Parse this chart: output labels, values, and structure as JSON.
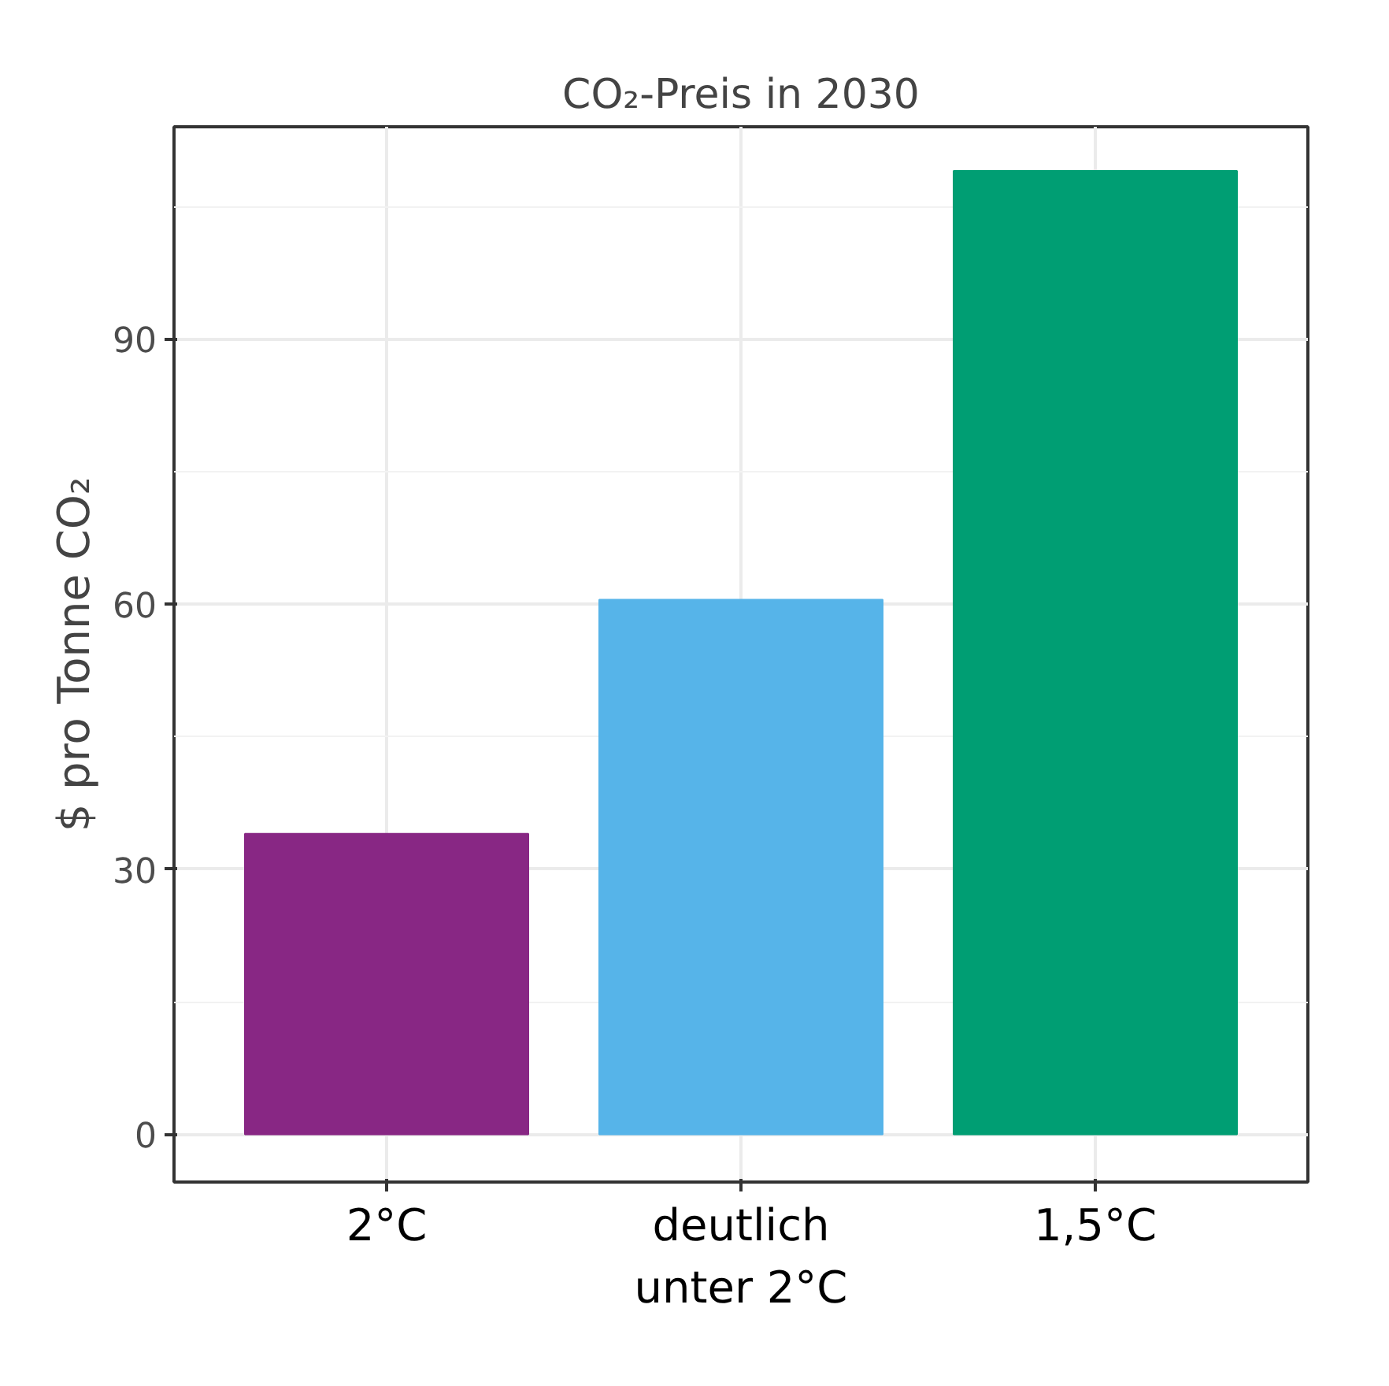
{
  "chart_data": {
    "type": "bar",
    "title": "CO₂-Preis in 2030",
    "ylabel": "$ pro Tonne CO₂",
    "categories": [
      "2°C",
      "deutlich unter 2°C",
      "1,5°C"
    ],
    "values": [
      34,
      60.5,
      109
    ],
    "colors": [
      "#882784",
      "#56b4e9",
      "#009e73"
    ],
    "ylim": [
      -5.4,
      114
    ],
    "yticks": [
      0,
      30,
      60,
      90
    ],
    "grid": true
  }
}
